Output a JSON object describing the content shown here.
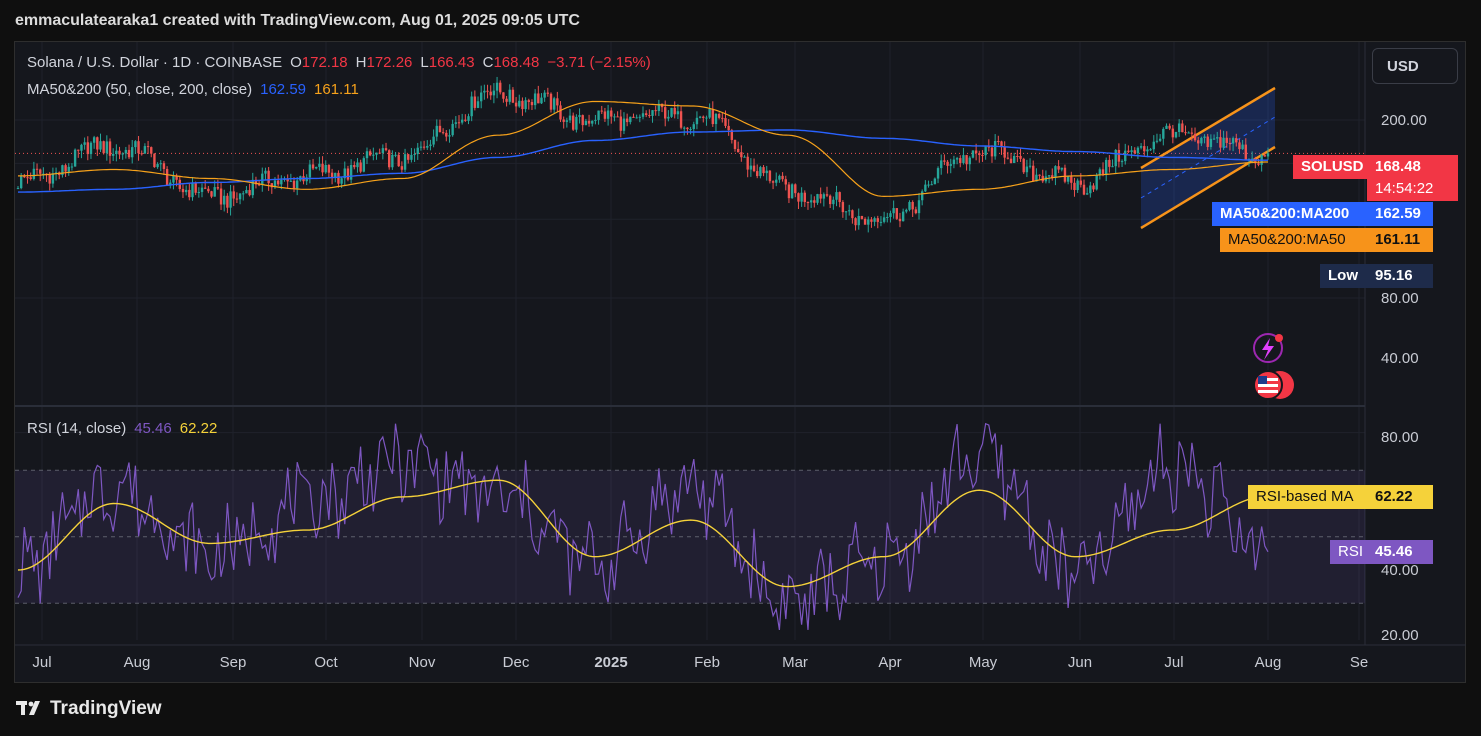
{
  "caption": "emmaculatearaka1 created with TradingView.com, Aug 01, 2025 09:05 UTC",
  "symbol": {
    "title": "Solana / U.S. Dollar · 1D · COINBASE",
    "o_label": "O",
    "o": "172.18",
    "h_label": "H",
    "h": "172.26",
    "l_label": "L",
    "l": "166.43",
    "c_label": "C",
    "c": "168.48",
    "change": "−3.71 (−2.15%)"
  },
  "ma_legend": {
    "label": "MA50&200 (50, close, 200, close)",
    "ma200": "162.59",
    "ma50": "161.11"
  },
  "rsi_legend": {
    "label": "RSI (14, close)",
    "rsi": "45.46",
    "ma": "62.22"
  },
  "currency_button": "USD",
  "price_axis": [
    "200.00",
    "80.00",
    "40.00"
  ],
  "rsi_axis": [
    "80.00",
    "40.00",
    "20.00"
  ],
  "time_axis": [
    "Jul",
    "Aug",
    "Sep",
    "Oct",
    "Nov",
    "Dec",
    "2025",
    "Feb",
    "Mar",
    "Apr",
    "May",
    "Jun",
    "Jul",
    "Aug",
    "Se"
  ],
  "tags": {
    "solusd_label": "SOLUSD",
    "solusd_value": "168.48",
    "countdown": "14:54:22",
    "ma200_label": "MA50&200:MA200",
    "ma200_value": "162.59",
    "ma50_label": "MA50&200:MA50",
    "ma50_value": "161.11",
    "low_label": "Low",
    "low_value": "95.16",
    "rsi_ma_label": "RSI-based MA",
    "rsi_ma_value": "62.22",
    "rsi_label": "RSI",
    "rsi_value": "45.46"
  },
  "footer": "TradingView",
  "colors": {
    "bull": "#26a69a",
    "bear": "#ef5350",
    "ma200": "#2962ff",
    "ma50": "#f7a21b",
    "rsi": "#7e57c2",
    "rsi_ma": "#f5d23a",
    "channel": "#f7931a"
  },
  "chart_data": [
    {
      "type": "candlestick",
      "title": "Solana / U.S. Dollar · 1D · COINBASE",
      "x": [
        "Jul",
        "Aug",
        "Sep",
        "Oct",
        "Nov",
        "Dec",
        "2025",
        "Feb",
        "Mar",
        "Apr",
        "May",
        "Jun",
        "Jul",
        "Aug"
      ],
      "series": [
        {
          "name": "close",
          "values": [
            145,
            175,
            135,
            150,
            165,
            230,
            200,
            205,
            140,
            120,
            170,
            145,
            185,
            168.48
          ]
        },
        {
          "name": "MA50&200:MA200",
          "values": [
            138,
            140,
            145,
            148,
            152,
            165,
            180,
            188,
            190,
            182,
            175,
            170,
            165,
            162.59
          ]
        },
        {
          "name": "MA50&200:MA50",
          "values": [
            150,
            155,
            148,
            140,
            148,
            185,
            220,
            215,
            185,
            135,
            140,
            150,
            155,
            161.11
          ]
        }
      ],
      "last": 168.48,
      "low": 95.16,
      "yticks": [
        200,
        80,
        40
      ]
    },
    {
      "type": "line",
      "title": "RSI (14, close)",
      "x": [
        "Jul",
        "Aug",
        "Sep",
        "Oct",
        "Nov",
        "Dec",
        "2025",
        "Feb",
        "Mar",
        "Apr",
        "May",
        "Jun",
        "Jul",
        "Aug"
      ],
      "series": [
        {
          "name": "RSI",
          "values": [
            40,
            65,
            45,
            60,
            72,
            62,
            42,
            65,
            30,
            42,
            75,
            38,
            72,
            45.46
          ]
        },
        {
          "name": "RSI-based MA",
          "values": [
            40,
            60,
            48,
            52,
            62,
            67,
            44,
            55,
            35,
            44,
            64,
            44,
            52,
            62.22
          ]
        }
      ],
      "bands": [
        70,
        50,
        30
      ],
      "ylim": [
        20,
        85
      ],
      "yticks": [
        80,
        40,
        20
      ]
    }
  ]
}
